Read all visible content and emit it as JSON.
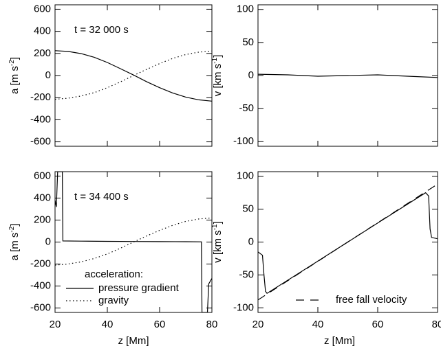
{
  "chart_data": [
    {
      "type": "line",
      "annotation": "t = 32 000 s",
      "ylabel": [
        "a [m s",
        "-2",
        "]"
      ],
      "xlim": [
        20,
        80
      ],
      "xticks": [
        20,
        40,
        60,
        80
      ],
      "xtick_labels": false,
      "ylim": [
        -640,
        640
      ],
      "yticks": [
        -600,
        -400,
        -200,
        0,
        200,
        400,
        600
      ],
      "series": [
        {
          "color": "#000000",
          "dash": "solid",
          "x": [
            20,
            25,
            30,
            35,
            40,
            45,
            50,
            55,
            60,
            65,
            70,
            75,
            80
          ],
          "values": [
            225,
            218,
            198,
            165,
            118,
            62,
            5,
            -55,
            -110,
            -158,
            -195,
            -220,
            -232
          ]
        },
        {
          "color": "#000000",
          "dash": "dotted",
          "x": [
            20,
            25,
            30,
            35,
            40,
            45,
            50,
            55,
            60,
            65,
            70,
            75,
            80
          ],
          "values": [
            -215,
            -205,
            -185,
            -155,
            -110,
            -58,
            0,
            55,
            108,
            155,
            190,
            212,
            222
          ]
        }
      ]
    },
    {
      "type": "line",
      "ylabel": [
        "v [km s",
        "-1",
        "]"
      ],
      "xlim": [
        20,
        80
      ],
      "xticks": [
        20,
        40,
        60,
        80
      ],
      "xtick_labels": false,
      "ylim": [
        -107,
        107
      ],
      "yticks": [
        -100,
        -50,
        0,
        50,
        100
      ],
      "series": [
        {
          "color": "#000000",
          "dash": "solid",
          "x": [
            20,
            30,
            40,
            50,
            60,
            70,
            80
          ],
          "values": [
            2,
            1,
            -1,
            0,
            1,
            -1,
            -3
          ]
        }
      ]
    },
    {
      "type": "line",
      "annotation": "t = 34 400 s",
      "ylabel": [
        "a [m s",
        "-2",
        "]"
      ],
      "xlabel": "z [Mm]",
      "xlim": [
        20,
        80
      ],
      "xticks": [
        20,
        40,
        60,
        80
      ],
      "xtick_labels": true,
      "ylim": [
        -640,
        640
      ],
      "yticks": [
        -600,
        -400,
        -200,
        0,
        200,
        400,
        600
      ],
      "legend_title": "acceleration:",
      "series": [
        {
          "name": "pressure gradient",
          "color": "#000000",
          "dash": "solid",
          "x": [
            20,
            20.5,
            21,
            22.8,
            23,
            30,
            40,
            50,
            60,
            70,
            76,
            76.2,
            78.3,
            78.8,
            80
          ],
          "values": [
            380,
            320,
            640,
            640,
            10,
            8,
            6,
            5,
            4,
            3,
            2,
            -640,
            -640,
            -380,
            -330
          ]
        },
        {
          "name": "gravity",
          "color": "#000000",
          "dash": "dotted",
          "x": [
            20,
            25,
            30,
            35,
            40,
            45,
            50,
            55,
            60,
            65,
            70,
            75,
            80
          ],
          "values": [
            -210,
            -200,
            -180,
            -150,
            -108,
            -56,
            0,
            55,
            106,
            152,
            188,
            210,
            220
          ]
        }
      ]
    },
    {
      "type": "line",
      "ylabel": [
        "v [km s",
        "-1",
        "]"
      ],
      "xlabel": "z [Mm]",
      "xlim": [
        20,
        80
      ],
      "xticks": [
        20,
        40,
        60,
        80
      ],
      "xtick_labels": true,
      "ylim": [
        -107,
        107
      ],
      "yticks": [
        -100,
        -50,
        0,
        50,
        100
      ],
      "series": [
        {
          "color": "#000000",
          "dash": "solid",
          "x": [
            20,
            21.5,
            22,
            22.5,
            23,
            40,
            60,
            76,
            77,
            77.5,
            78,
            80
          ],
          "values": [
            -15,
            -20,
            -50,
            -75,
            -78,
            -29,
            29,
            75,
            70,
            20,
            7,
            5
          ]
        },
        {
          "name": "free fall velocity",
          "color": "#000000",
          "dash": "dashed",
          "x": [
            20,
            80
          ],
          "values": [
            -88,
            88
          ]
        }
      ]
    }
  ]
}
